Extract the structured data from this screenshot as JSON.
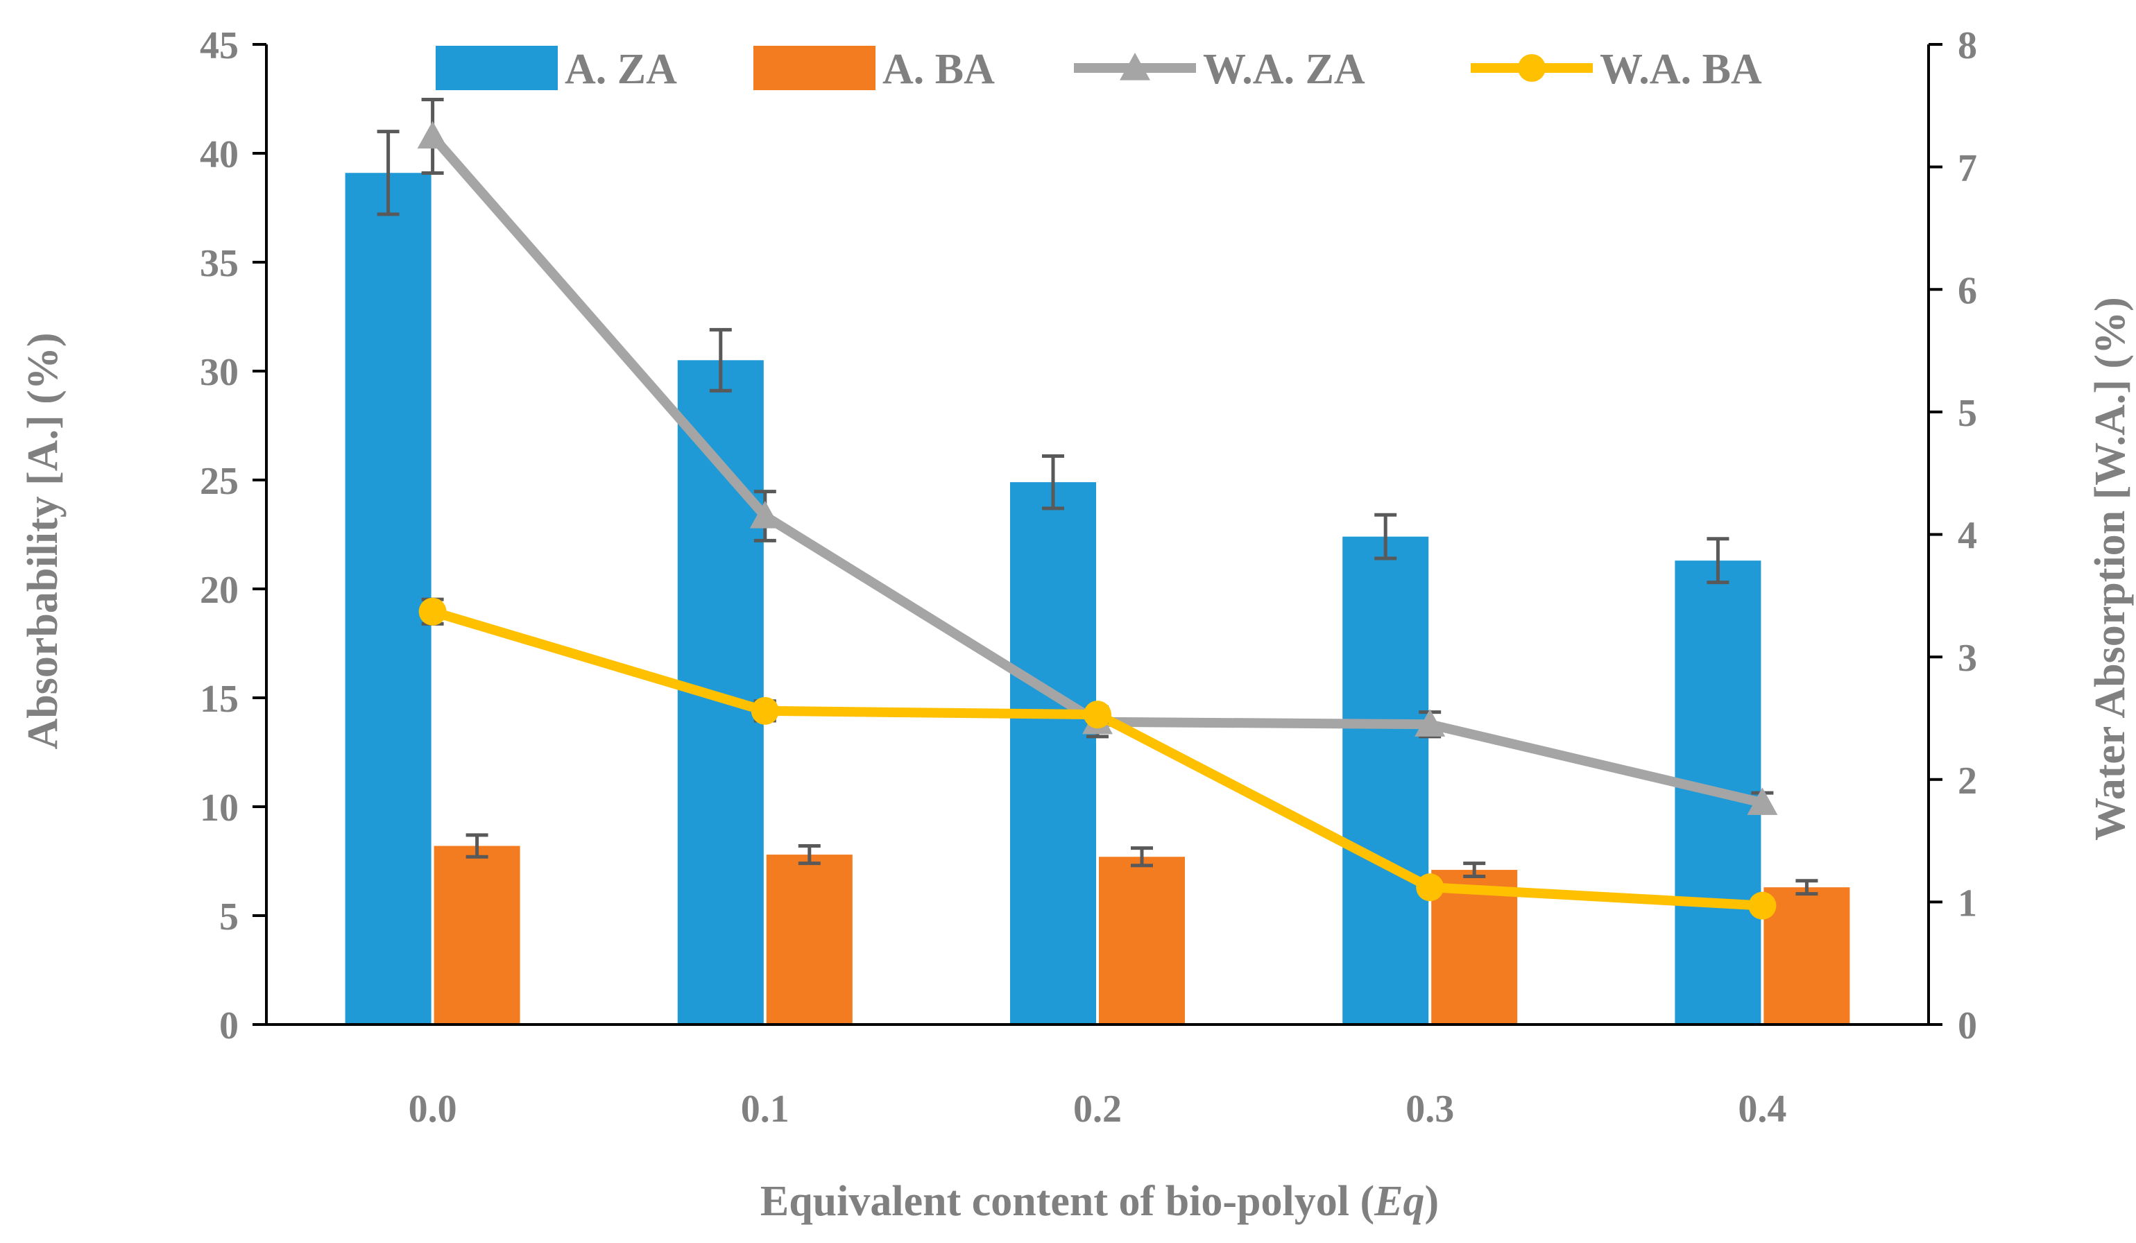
{
  "chart_data": {
    "type": "bar",
    "categories": [
      "0.0",
      "0.1",
      "0.2",
      "0.3",
      "0.4"
    ],
    "xlabel_main": "Equivalent content of bio-polyol (",
    "xlabel_italic": "Eq",
    "xlabel_end": ")",
    "ylabel": "Absorbability [A.] (%)",
    "y2label": "Water Absorption [W.A.] (%)",
    "ylim": [
      0,
      45
    ],
    "y2lim": [
      0,
      8
    ],
    "yticks": [
      "0",
      "5",
      "10",
      "15",
      "20",
      "25",
      "30",
      "35",
      "40",
      "45"
    ],
    "y2ticks": [
      "0",
      "1",
      "2",
      "3",
      "4",
      "5",
      "6",
      "7",
      "8"
    ],
    "legend_position": "top",
    "bar_series": [
      {
        "name": "A. ZA",
        "axis": "left",
        "color": "#1f9ad6",
        "values": [
          39.1,
          30.5,
          24.9,
          22.4,
          21.3
        ],
        "errors": [
          1.9,
          1.4,
          1.2,
          1.0,
          1.0
        ]
      },
      {
        "name": "A. BA",
        "axis": "left",
        "color": "#f47c20",
        "values": [
          8.2,
          7.8,
          7.7,
          7.1,
          6.3
        ],
        "errors": [
          0.5,
          0.4,
          0.4,
          0.3,
          0.3
        ]
      }
    ],
    "line_series": [
      {
        "name": "W.A. ZA",
        "axis": "right",
        "color": "#a5a5a5",
        "marker": "triangle",
        "values": [
          7.25,
          4.15,
          2.47,
          2.45,
          1.81
        ],
        "errors": [
          0.3,
          0.2,
          0.12,
          0.1,
          0.08
        ]
      },
      {
        "name": "W.A. BA",
        "axis": "right",
        "color": "#ffc000",
        "marker": "circle",
        "values": [
          3.37,
          2.56,
          2.53,
          1.12,
          0.97
        ],
        "errors": [
          0.1,
          0.08,
          0.06,
          0.05,
          0.04
        ]
      }
    ],
    "error_bar_color": "#595959",
    "axis_color": "#000000",
    "grid": false
  }
}
